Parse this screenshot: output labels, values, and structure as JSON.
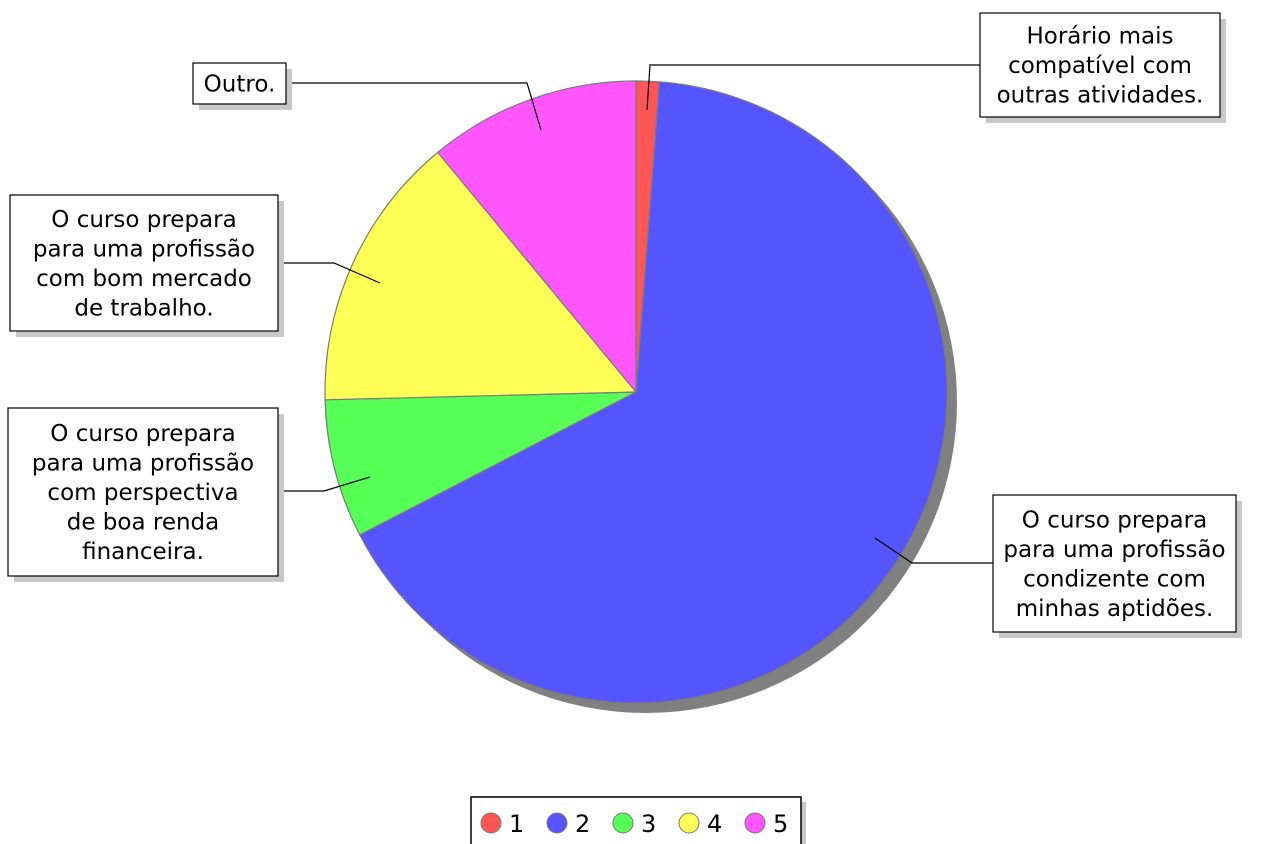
{
  "chart_data": {
    "type": "pie",
    "title": "",
    "slices": [
      {
        "legend": "1",
        "label": "Horário mais compatível com outras atividades.",
        "value": 1.2,
        "color": "#ff5555"
      },
      {
        "legend": "2",
        "label": "O curso prepara para uma profissão condizente com minhas aptidões.",
        "value": 66.2,
        "color": "#5555ff"
      },
      {
        "legend": "3",
        "label": "O curso prepara para uma profissão com perspectiva de boa renda financeira.",
        "value": 7.2,
        "color": "#55ff55"
      },
      {
        "legend": "4",
        "label": "O curso prepara para uma profissão com bom mercado de trabalho.",
        "value": 14.4,
        "color": "#ffff55"
      },
      {
        "legend": "5",
        "label": "Outro.",
        "value": 11.0,
        "color": "#ff55ff"
      }
    ],
    "legend_position": "bottom-center"
  }
}
